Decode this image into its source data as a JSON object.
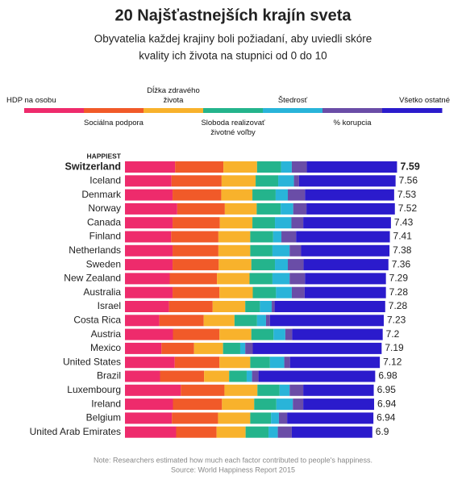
{
  "chart_data": {
    "type": "bar",
    "orientation": "horizontal",
    "stacked": true,
    "title": "20 Najšťastnejších krajín sveta",
    "subtitle": [
      "Obyvatelia každej krajiny boli požiadaní, aby uviedli skóre",
      "kvality ich života na stupnici od 0 do 10"
    ],
    "annotation": "HAPPIEST",
    "note": "Note: Researchers estimated how much each factor contributed to people's happiness.",
    "source": "Source: World Happiness Report 2015",
    "categories": [
      "Switzerland",
      "Iceland",
      "Denmark",
      "Norway",
      "Canada",
      "Finland",
      "Netherlands",
      "Sweden",
      "New Zealand",
      "Australia",
      "Israel",
      "Costa Rica",
      "Austria",
      "Mexico",
      "United States",
      "Brazil",
      "Luxembourg",
      "Ireland",
      "Belgium",
      "United Arab Emirates"
    ],
    "totals": [
      7.59,
      7.56,
      7.53,
      7.52,
      7.43,
      7.41,
      7.38,
      7.36,
      7.29,
      7.28,
      7.28,
      7.23,
      7.2,
      7.19,
      7.12,
      6.98,
      6.95,
      6.94,
      6.94,
      6.9
    ],
    "series": [
      {
        "name": "HDP na osobu",
        "color": "#ee2b6c",
        "values": [
          1.4,
          1.3,
          1.33,
          1.46,
          1.33,
          1.29,
          1.33,
          1.33,
          1.25,
          1.33,
          1.23,
          0.96,
          1.34,
          1.02,
          1.39,
          0.98,
          1.56,
          1.34,
          1.31,
          1.43
        ]
      },
      {
        "name": "Sociálna podpora",
        "color": "#f15a29",
        "values": [
          1.35,
          1.4,
          1.36,
          1.33,
          1.32,
          1.32,
          1.28,
          1.29,
          1.32,
          1.31,
          1.22,
          1.24,
          1.3,
          0.91,
          1.25,
          1.23,
          1.22,
          1.37,
          1.29,
          1.13
        ]
      },
      {
        "name": "Dĺžka zdravého života",
        "color": "#f8b22c",
        "values": [
          0.94,
          0.95,
          0.87,
          0.89,
          0.91,
          0.89,
          0.89,
          0.91,
          0.91,
          0.93,
          0.91,
          0.86,
          0.89,
          0.81,
          0.86,
          0.7,
          0.92,
          0.9,
          0.9,
          0.81
        ]
      },
      {
        "name": "Sloboda realizovať životné voľby",
        "color": "#24b48c",
        "values": [
          0.67,
          0.63,
          0.65,
          0.67,
          0.63,
          0.64,
          0.62,
          0.66,
          0.64,
          0.65,
          0.41,
          0.63,
          0.62,
          0.48,
          0.55,
          0.49,
          0.62,
          0.62,
          0.58,
          0.64
        ]
      },
      {
        "name": "Štedrosť",
        "color": "#29b4d9",
        "values": [
          0.3,
          0.44,
          0.34,
          0.35,
          0.46,
          0.23,
          0.48,
          0.36,
          0.48,
          0.44,
          0.33,
          0.25,
          0.33,
          0.14,
          0.4,
          0.15,
          0.28,
          0.46,
          0.22,
          0.26
        ]
      },
      {
        "name": "% korupcia",
        "color": "#6a4da7",
        "values": [
          0.42,
          0.14,
          0.48,
          0.37,
          0.33,
          0.41,
          0.32,
          0.44,
          0.43,
          0.36,
          0.08,
          0.11,
          0.19,
          0.21,
          0.16,
          0.18,
          0.38,
          0.29,
          0.23,
          0.39
        ]
      },
      {
        "name": "Všetko ostatné",
        "color": "#2b1bcc",
        "values": [
          2.52,
          2.7,
          2.49,
          2.47,
          2.45,
          2.62,
          2.47,
          2.37,
          2.26,
          2.27,
          3.09,
          3.18,
          2.53,
          3.6,
          2.51,
          3.26,
          1.97,
          1.98,
          2.41,
          2.25
        ]
      }
    ]
  }
}
